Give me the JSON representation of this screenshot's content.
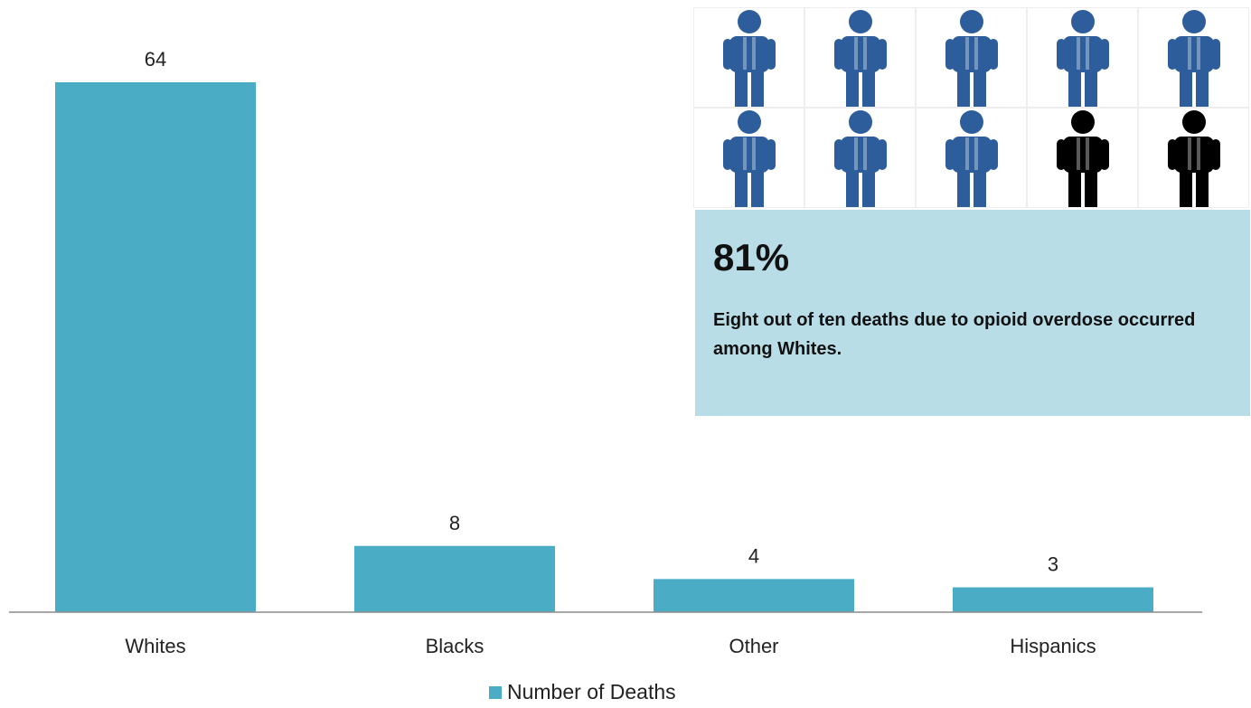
{
  "chart_data": {
    "type": "bar",
    "categories": [
      "Whites",
      "Blacks",
      "Other",
      "Hispanics"
    ],
    "series": [
      {
        "name": "Number of Deaths",
        "values": [
          64,
          8,
          4,
          3
        ]
      }
    ],
    "data_labels": [
      "64",
      "8",
      "4",
      "3"
    ],
    "title": "",
    "xlabel": "",
    "ylabel": "",
    "ylim": [
      0,
      64
    ],
    "grid": false,
    "legend_position": "bottom",
    "bar_color": "#4bacc6"
  },
  "infographic": {
    "icons": [
      {
        "name": "person-icon",
        "color": "#2d5d9a"
      },
      {
        "name": "person-icon",
        "color": "#2d5d9a"
      },
      {
        "name": "person-icon",
        "color": "#2d5d9a"
      },
      {
        "name": "person-icon",
        "color": "#2d5d9a"
      },
      {
        "name": "person-icon",
        "color": "#2d5d9a"
      },
      {
        "name": "person-icon",
        "color": "#2d5d9a"
      },
      {
        "name": "person-icon",
        "color": "#2d5d9a"
      },
      {
        "name": "person-icon",
        "color": "#2d5d9a"
      },
      {
        "name": "person-icon",
        "color": "#000000"
      },
      {
        "name": "person-icon",
        "color": "#000000"
      }
    ],
    "percent": "81%",
    "description": "Eight out of ten deaths due to opioid overdose occurred among Whites.",
    "box_color": "#b8dde7"
  },
  "legend": {
    "label": "Number of Deaths"
  }
}
